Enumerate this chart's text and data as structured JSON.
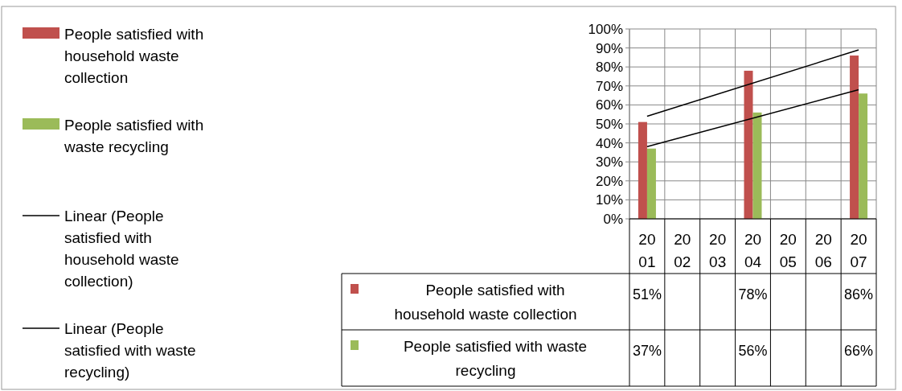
{
  "chart_data": {
    "type": "bar",
    "categories": [
      "2001",
      "2002",
      "2003",
      "2004",
      "2005",
      "2006",
      "2007"
    ],
    "series": [
      {
        "name": "People satisfied with household waste collection",
        "color": "#c0504d",
        "values": [
          51,
          null,
          null,
          78,
          null,
          null,
          86
        ],
        "value_labels": [
          "51%",
          null,
          null,
          "78%",
          null,
          null,
          "86%"
        ]
      },
      {
        "name": "People satisfied with waste recycling",
        "color": "#9bbb59",
        "values": [
          37,
          null,
          null,
          56,
          null,
          null,
          66
        ],
        "value_labels": [
          "37%",
          null,
          null,
          "56%",
          null,
          null,
          "66%"
        ]
      },
      {
        "type": "line",
        "name": "Linear (People satisfied with household waste collection)",
        "color": "#000000",
        "values": [
          54,
          null,
          null,
          null,
          null,
          null,
          89
        ]
      },
      {
        "type": "line",
        "name": "Linear (People satisfied with waste recycling)",
        "color": "#000000",
        "values": [
          38,
          null,
          null,
          null,
          null,
          null,
          68
        ]
      }
    ],
    "ylim": [
      0,
      100
    ],
    "yticks": [
      {
        "value": 0,
        "label": "0%"
      },
      {
        "value": 10,
        "label": "10%"
      },
      {
        "value": 20,
        "label": "20%"
      },
      {
        "value": 30,
        "label": "30%"
      },
      {
        "value": 40,
        "label": "40%"
      },
      {
        "value": 50,
        "label": "50%"
      },
      {
        "value": 60,
        "label": "60%"
      },
      {
        "value": 70,
        "label": "70%"
      },
      {
        "value": 80,
        "label": "80%"
      },
      {
        "value": 90,
        "label": "90%"
      },
      {
        "value": 100,
        "label": "100%"
      }
    ],
    "grid": true,
    "legend": "left"
  }
}
